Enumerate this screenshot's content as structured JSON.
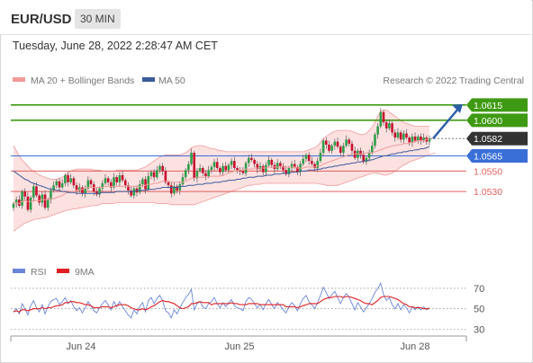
{
  "header": {
    "symbol": "EUR/USD",
    "timeframe": "30 MIN"
  },
  "datetime": "Tuesday, June 28, 2022 2:28:47 AM CET",
  "copyright": "Research © 2022 Trading Central",
  "colors": {
    "bull": "#2e9e4a",
    "bear": "#c8102e",
    "band_fill": "#fcdcdc",
    "band_line": "#f19a9a",
    "ma50": "#3b5b9a",
    "resistance": "#3f9a13",
    "support": "#e06060",
    "pivot": "#3a6fd8",
    "last_price_bg": "#333333",
    "rsi": "#6a86d8",
    "rsi_ma": "#e02020"
  },
  "chart_data": [
    {
      "type": "candlestick",
      "legend": [
        "MA 20 + Bollinger Bands",
        "MA 50"
      ],
      "x_tick_labels": [
        "Jun 24",
        "Jun 25",
        "Jun 28"
      ],
      "ylim": [
        1.0485,
        1.0629
      ],
      "last_price": 1.0582,
      "forecast_arrow": {
        "from": 1.0582,
        "to": 1.0615
      },
      "levels": [
        {
          "value": 1.0615,
          "label": "1.0615",
          "kind": "resistance"
        },
        {
          "value": 1.06,
          "label": "1.0600",
          "kind": "resistance"
        },
        {
          "value": 1.0582,
          "label": "1.0582",
          "kind": "last"
        },
        {
          "value": 1.0565,
          "label": "1.0565",
          "kind": "pivot"
        },
        {
          "value": 1.055,
          "label": "1.0550",
          "kind": "support"
        },
        {
          "value": 1.053,
          "label": "1.0530",
          "kind": "support"
        }
      ],
      "close": [
        1.0518,
        1.0522,
        1.0516,
        1.053,
        1.0525,
        1.0512,
        1.0524,
        1.0535,
        1.0526,
        1.0519,
        1.0527,
        1.0514,
        1.0522,
        1.0531,
        1.0536,
        1.054,
        1.0534,
        1.0538,
        1.0546,
        1.0539,
        1.0543,
        1.0536,
        1.0531,
        1.0534,
        1.0528,
        1.0533,
        1.0541,
        1.0537,
        1.053,
        1.0527,
        1.0533,
        1.0538,
        1.0543,
        1.0539,
        1.0534,
        1.0544,
        1.0539,
        1.0546,
        1.0541,
        1.0536,
        1.0531,
        1.0526,
        1.0533,
        1.0529,
        1.0537,
        1.0542,
        1.0532,
        1.0545,
        1.0549,
        1.0544,
        1.0551,
        1.0555,
        1.055,
        1.0539,
        1.0536,
        1.0528,
        1.0535,
        1.0531,
        1.0537,
        1.0544,
        1.0551,
        1.0557,
        1.0568,
        1.0543,
        1.055,
        1.0553,
        1.0548,
        1.0545,
        1.0551,
        1.0554,
        1.0559,
        1.0553,
        1.0549,
        1.0555,
        1.0551,
        1.0556,
        1.056,
        1.0553,
        1.0551,
        1.055,
        1.0548,
        1.0558,
        1.0563,
        1.0561,
        1.0557,
        1.0552,
        1.0555,
        1.0549,
        1.0556,
        1.0561,
        1.0556,
        1.0552,
        1.0558,
        1.0555,
        1.0551,
        1.0547,
        1.0553,
        1.0557,
        1.0554,
        1.0549,
        1.0557,
        1.0562,
        1.0566,
        1.056,
        1.0557,
        1.0553,
        1.056,
        1.0568,
        1.058,
        1.0576,
        1.057,
        1.0575,
        1.0579,
        1.0574,
        1.0568,
        1.0575,
        1.0581,
        1.0577,
        1.057,
        1.0563,
        1.057,
        1.0566,
        1.0559,
        1.0563,
        1.0568,
        1.0575,
        1.0586,
        1.0594,
        1.0608,
        1.0598,
        1.0592,
        1.0597,
        1.0588,
        1.0583,
        1.0588,
        1.0581,
        1.0587,
        1.0583,
        1.0578,
        1.0584,
        1.058,
        1.0584,
        1.058,
        1.0583,
        1.0579,
        1.0582
      ],
      "ma20": [
        1.0518,
        1.0519,
        1.0518,
        1.052,
        1.0521,
        1.052,
        1.052,
        1.0521,
        1.0521,
        1.0521,
        1.0522,
        1.0522,
        1.0522,
        1.0523,
        1.0523,
        1.0524,
        1.0525,
        1.0526,
        1.0528,
        1.0529,
        1.053,
        1.053,
        1.0531,
        1.0532,
        1.0532,
        1.0533,
        1.0534,
        1.0534,
        1.0534,
        1.0534,
        1.0534,
        1.0534,
        1.0535,
        1.0535,
        1.0535,
        1.0535,
        1.0535,
        1.0535,
        1.0535,
        1.0535,
        1.0535,
        1.0535,
        1.0535,
        1.0535,
        1.0535,
        1.0536,
        1.0536,
        1.0537,
        1.0537,
        1.0538,
        1.0538,
        1.0539,
        1.054,
        1.054,
        1.054,
        1.0539,
        1.0539,
        1.0539,
        1.0539,
        1.0539,
        1.054,
        1.0541,
        1.0543,
        1.0543,
        1.0544,
        1.0544,
        1.0544,
        1.0544,
        1.0544,
        1.0545,
        1.0545,
        1.0545,
        1.0545,
        1.0546,
        1.0547,
        1.0548,
        1.0549,
        1.055,
        1.055,
        1.0551,
        1.0551,
        1.0552,
        1.0552,
        1.0552,
        1.0553,
        1.0553,
        1.0553,
        1.0553,
        1.0553,
        1.0554,
        1.0554,
        1.0554,
        1.0554,
        1.0554,
        1.0554,
        1.0554,
        1.0554,
        1.0554,
        1.0554,
        1.0553,
        1.0553,
        1.0553,
        1.0554,
        1.0554,
        1.0554,
        1.0554,
        1.0555,
        1.0555,
        1.0557,
        1.0558,
        1.0559,
        1.056,
        1.0561,
        1.0562,
        1.0563,
        1.0564,
        1.0565,
        1.0566,
        1.0566,
        1.0567,
        1.0567,
        1.0567,
        1.0567,
        1.0568,
        1.0568,
        1.0568,
        1.0569,
        1.057,
        1.0571,
        1.0572,
        1.0573,
        1.0574,
        1.0575,
        1.0575,
        1.0576,
        1.0576,
        1.0577,
        1.0577,
        1.0578,
        1.0578,
        1.0579,
        1.058,
        1.058,
        1.058,
        1.0581,
        1.0581
      ],
      "upper_band": [
        1.0575,
        1.057,
        1.0565,
        1.0561,
        1.0558,
        1.0555,
        1.0552,
        1.055,
        1.0548,
        1.0546,
        1.0545,
        1.0544,
        1.0543,
        1.0542,
        1.0542,
        1.0542,
        1.0543,
        1.0544,
        1.0546,
        1.0548,
        1.055,
        1.0551,
        1.0552,
        1.0552,
        1.0552,
        1.0552,
        1.0552,
        1.0552,
        1.0551,
        1.0551,
        1.0551,
        1.055,
        1.055,
        1.055,
        1.055,
        1.055,
        1.0551,
        1.0551,
        1.0551,
        1.0551,
        1.0551,
        1.0551,
        1.0551,
        1.0551,
        1.0552,
        1.0553,
        1.0554,
        1.0556,
        1.0558,
        1.056,
        1.0562,
        1.0564,
        1.0565,
        1.0566,
        1.0566,
        1.0566,
        1.0566,
        1.0566,
        1.0566,
        1.0567,
        1.0568,
        1.057,
        1.0573,
        1.0574,
        1.0575,
        1.0575,
        1.0575,
        1.0574,
        1.0573,
        1.0572,
        1.0572,
        1.0571,
        1.057,
        1.057,
        1.0569,
        1.0569,
        1.0569,
        1.0569,
        1.0569,
        1.0569,
        1.0569,
        1.0569,
        1.0569,
        1.0569,
        1.0569,
        1.0569,
        1.0569,
        1.0569,
        1.0569,
        1.0569,
        1.0569,
        1.0569,
        1.0569,
        1.0569,
        1.0569,
        1.0569,
        1.0569,
        1.0569,
        1.0569,
        1.0569,
        1.0569,
        1.0569,
        1.057,
        1.0571,
        1.0572,
        1.0573,
        1.0575,
        1.0578,
        1.0582,
        1.0584,
        1.0586,
        1.0588,
        1.0589,
        1.059,
        1.059,
        1.059,
        1.059,
        1.059,
        1.0589,
        1.0588,
        1.0587,
        1.0586,
        1.0586,
        1.0587,
        1.059,
        1.0593,
        1.0598,
        1.0604,
        1.0609,
        1.061,
        1.061,
        1.0608,
        1.0606,
        1.0604,
        1.0602,
        1.06,
        1.0598,
        1.0597,
        1.0596,
        1.0595,
        1.0594,
        1.0594,
        1.0594,
        1.0594,
        1.0594,
        1.0594
      ],
      "lower_band": [
        1.0491,
        1.0493,
        1.0495,
        1.0497,
        1.0499,
        1.05,
        1.0501,
        1.0502,
        1.0503,
        1.0503,
        1.0504,
        1.0504,
        1.0505,
        1.0506,
        1.0507,
        1.0508,
        1.0509,
        1.051,
        1.0511,
        1.0512,
        1.0512,
        1.0513,
        1.0513,
        1.0514,
        1.0514,
        1.0515,
        1.0515,
        1.0516,
        1.0516,
        1.0516,
        1.0517,
        1.0518,
        1.0518,
        1.0518,
        1.0518,
        1.0518,
        1.0519,
        1.0519,
        1.0519,
        1.0519,
        1.0519,
        1.0519,
        1.0519,
        1.0519,
        1.0519,
        1.0519,
        1.0519,
        1.0519,
        1.0519,
        1.0519,
        1.0518,
        1.0518,
        1.0518,
        1.0518,
        1.0518,
        1.0517,
        1.0517,
        1.0517,
        1.0517,
        1.0517,
        1.0517,
        1.0517,
        1.0517,
        1.0517,
        1.0518,
        1.0519,
        1.052,
        1.0521,
        1.0522,
        1.0523,
        1.0524,
        1.0525,
        1.0526,
        1.0527,
        1.0528,
        1.0529,
        1.053,
        1.0531,
        1.0532,
        1.0533,
        1.0534,
        1.0535,
        1.0536,
        1.0536,
        1.0537,
        1.0537,
        1.0537,
        1.0538,
        1.0538,
        1.0538,
        1.0538,
        1.0538,
        1.0538,
        1.0538,
        1.0538,
        1.0538,
        1.0538,
        1.0538,
        1.0538,
        1.0538,
        1.0538,
        1.0538,
        1.0538,
        1.0538,
        1.0538,
        1.0538,
        1.0538,
        1.0537,
        1.0537,
        1.0536,
        1.0536,
        1.0536,
        1.0536,
        1.0536,
        1.0537,
        1.0538,
        1.0539,
        1.054,
        1.0541,
        1.0542,
        1.0543,
        1.0544,
        1.0545,
        1.0546,
        1.0547,
        1.0548,
        1.0548,
        1.0548,
        1.0547,
        1.0546,
        1.0546,
        1.0547,
        1.0548,
        1.055,
        1.0552,
        1.0554,
        1.0556,
        1.0557,
        1.0559,
        1.056,
        1.0561,
        1.0562,
        1.0563,
        1.0564,
        1.0565,
        1.0566,
        1.0567,
        1.0568
      ],
      "ma50": [
        1.055,
        1.0548,
        1.0546,
        1.0544,
        1.0542,
        1.0541,
        1.0539,
        1.0538,
        1.0537,
        1.0536,
        1.0535,
        1.0534,
        1.0533,
        1.0532,
        1.0532,
        1.0531,
        1.0531,
        1.053,
        1.053,
        1.0529,
        1.0529,
        1.0529,
        1.0528,
        1.0528,
        1.0528,
        1.0528,
        1.0528,
        1.0528,
        1.0528,
        1.0528,
        1.0528,
        1.0529,
        1.0529,
        1.0529,
        1.0529,
        1.0529,
        1.053,
        1.053,
        1.053,
        1.053,
        1.053,
        1.053,
        1.053,
        1.0531,
        1.0531,
        1.0531,
        1.0531,
        1.0532,
        1.0532,
        1.0532,
        1.0533,
        1.0533,
        1.0534,
        1.0534,
        1.0534,
        1.0534,
        1.0534,
        1.0534,
        1.0535,
        1.0535,
        1.0535,
        1.0536,
        1.0536,
        1.0536,
        1.0537,
        1.0537,
        1.0537,
        1.0538,
        1.0538,
        1.0538,
        1.0539,
        1.0539,
        1.0539,
        1.054,
        1.054,
        1.0541,
        1.0541,
        1.0541,
        1.0542,
        1.0542,
        1.0543,
        1.0543,
        1.0544,
        1.0544,
        1.0544,
        1.0545,
        1.0545,
        1.0545,
        1.0546,
        1.0546,
        1.0546,
        1.0547,
        1.0547,
        1.0547,
        1.0548,
        1.0548,
        1.0548,
        1.0549,
        1.0549,
        1.0549,
        1.055,
        1.055,
        1.055,
        1.0551,
        1.0551,
        1.0551,
        1.0552,
        1.0552,
        1.0553,
        1.0553,
        1.0554,
        1.0554,
        1.0555,
        1.0555,
        1.0556,
        1.0556,
        1.0557,
        1.0557,
        1.0558,
        1.0558,
        1.0559,
        1.0559,
        1.056,
        1.056,
        1.0561,
        1.0561,
        1.0562,
        1.0563,
        1.0564,
        1.0565,
        1.0565,
        1.0566,
        1.0567,
        1.0567,
        1.0568,
        1.0568,
        1.0569,
        1.0569,
        1.057,
        1.057,
        1.0571,
        1.0571,
        1.0572,
        1.0572,
        1.0573,
        1.0574
      ]
    },
    {
      "type": "line",
      "legend": [
        "RSI",
        "9MA"
      ],
      "ylim": [
        26,
        76
      ],
      "y_ticks": [
        70,
        50,
        30
      ],
      "series": [
        {
          "name": "RSI",
          "values": [
            47,
            50,
            45,
            55,
            50,
            44,
            53,
            58,
            51,
            47,
            54,
            45,
            52,
            57,
            59,
            60,
            54,
            57,
            61,
            55,
            58,
            52,
            48,
            51,
            46,
            51,
            57,
            53,
            48,
            46,
            51,
            55,
            58,
            54,
            49,
            57,
            52,
            57,
            52,
            48,
            44,
            41,
            49,
            45,
            52,
            56,
            47,
            58,
            61,
            55,
            60,
            63,
            58,
            48,
            46,
            41,
            49,
            45,
            51,
            56,
            61,
            64,
            69,
            49,
            55,
            57,
            52,
            50,
            55,
            57,
            61,
            55,
            51,
            56,
            52,
            56,
            59,
            53,
            51,
            50,
            48,
            57,
            61,
            59,
            55,
            51,
            54,
            49,
            55,
            59,
            54,
            50,
            56,
            53,
            49,
            46,
            52,
            56,
            53,
            48,
            55,
            60,
            63,
            57,
            54,
            50,
            56,
            63,
            71,
            66,
            60,
            64,
            67,
            61,
            55,
            61,
            65,
            61,
            55,
            49,
            56,
            52,
            47,
            51,
            55,
            60,
            66,
            70,
            75,
            64,
            58,
            61,
            54,
            50,
            55,
            49,
            54,
            51,
            46,
            52,
            49,
            52,
            49,
            52,
            49,
            51
          ]
        },
        {
          "name": "9MA",
          "values": [
            47,
            48,
            47,
            49,
            49,
            48,
            49,
            50,
            50,
            50,
            51,
            50,
            51,
            51,
            52,
            53,
            53,
            54,
            56,
            56,
            57,
            57,
            56,
            56,
            55,
            54,
            54,
            53,
            51,
            51,
            51,
            52,
            52,
            52,
            51,
            52,
            53,
            54,
            54,
            54,
            53,
            51,
            50,
            49,
            49,
            50,
            49,
            50,
            52,
            53,
            55,
            57,
            58,
            57,
            57,
            56,
            55,
            53,
            51,
            50,
            51,
            52,
            55,
            55,
            56,
            57,
            56,
            56,
            56,
            54,
            55,
            55,
            55,
            55,
            55,
            55,
            56,
            55,
            55,
            54,
            54,
            54,
            55,
            55,
            55,
            55,
            54,
            54,
            54,
            54,
            54,
            54,
            54,
            54,
            54,
            52,
            52,
            52,
            52,
            51,
            52,
            53,
            54,
            55,
            55,
            55,
            55,
            57,
            59,
            60,
            61,
            61,
            62,
            62,
            62,
            61,
            62,
            62,
            61,
            60,
            59,
            58,
            56,
            55,
            55,
            54,
            56,
            58,
            61,
            62,
            62,
            62,
            61,
            60,
            59,
            57,
            55,
            54,
            52,
            52,
            51,
            51,
            51,
            50,
            50,
            50
          ]
        }
      ]
    }
  ]
}
